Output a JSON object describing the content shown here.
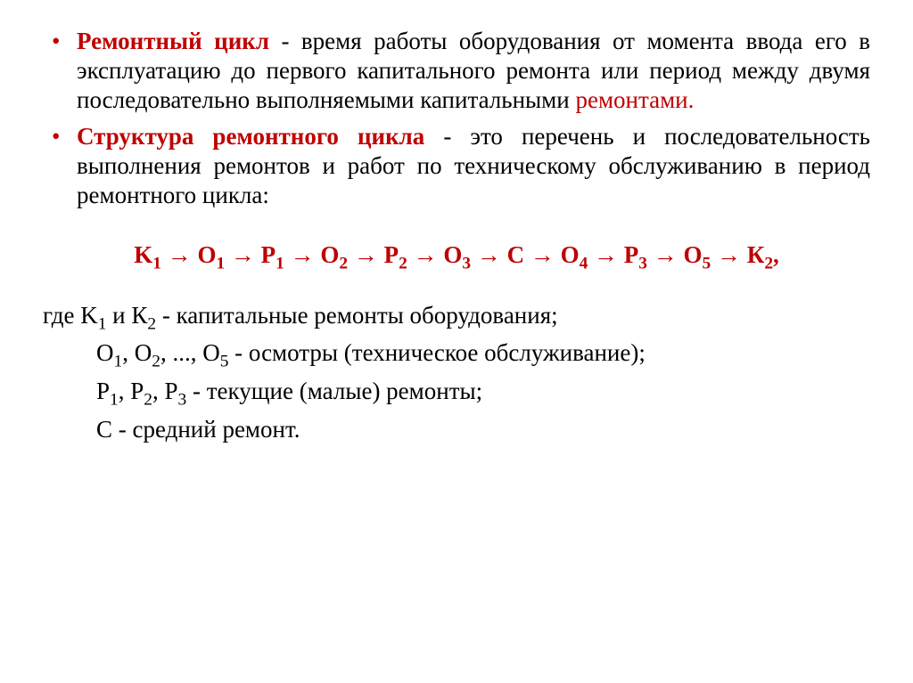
{
  "colors": {
    "accent": "#c00000",
    "text": "#000000",
    "background": "#ffffff"
  },
  "typography": {
    "font_family": "Times New Roman",
    "body_fontsize_pt": 20,
    "formula_fontsize_pt": 20,
    "line_height": 1.22
  },
  "bullets": [
    {
      "term": "Ремонтный цикл",
      "body_plain": " - время работы оборудования от момента ввода его в эксплуатацию до первого капитального ремонта или период между двумя последовательно выполняемыми капитальными ",
      "tail_accent": "ремонтами."
    },
    {
      "term": "Структура ремонтного цикла",
      "body_plain": " -  это перечень и последовательность выполнения ремонтов и работ по техническому обслуживанию в период ремонтного цикла:",
      "tail_accent": ""
    }
  ],
  "formula": {
    "sequence": [
      "K_1",
      "O_1",
      "P_1",
      "O_2",
      "P_2",
      "O_3",
      "С",
      "O_4",
      "P_3",
      "O_5",
      "К_2"
    ],
    "arrow": "→",
    "trailing_comma": ","
  },
  "legend": {
    "intro_word": "где ",
    "lines": [
      {
        "symbols": "K_1 и К_2",
        "desc": " - капитальные ремонты оборудования;",
        "indent": false
      },
      {
        "symbols": "O_1, O_2, ..., O_5",
        "desc": " - осмотры (техническое обслуживание);",
        "indent": true
      },
      {
        "symbols": "P_1, P_2, P_3",
        "desc": " - текущие (малые) ремонты;",
        "indent": true
      },
      {
        "symbols": "С",
        "desc": " - средний ремонт.",
        "indent": true
      }
    ]
  }
}
